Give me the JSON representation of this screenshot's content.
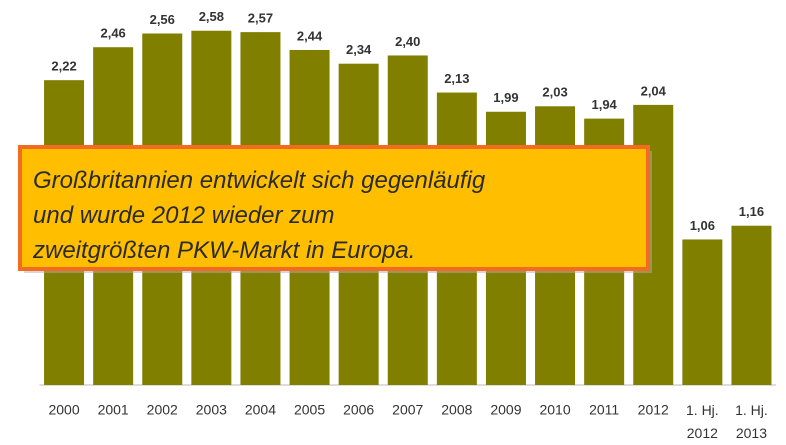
{
  "chart_data": {
    "type": "bar",
    "categories": [
      "2000",
      "2001",
      "2002",
      "2003",
      "2004",
      "2005",
      "2006",
      "2007",
      "2008",
      "2009",
      "2010",
      "2011",
      "2012",
      "1. Hj. 2012",
      "1. Hj. 2013"
    ],
    "values": [
      2.22,
      2.46,
      2.56,
      2.58,
      2.57,
      2.44,
      2.34,
      2.4,
      2.13,
      1.99,
      2.03,
      1.94,
      2.04,
      1.06,
      1.16
    ],
    "value_labels": [
      "2,22",
      "2,46",
      "2,56",
      "2,58",
      "2,57",
      "2,44",
      "2,34",
      "2,40",
      "2,13",
      "1,99",
      "2,03",
      "1,94",
      "2,04",
      "1,06",
      "1,16"
    ],
    "color": "#807f00",
    "ylim": [
      0,
      2.6
    ],
    "annotation": [
      "Großbritannien entwickelt sich gegenläufig",
      "und wurde 2012 wieder zum",
      "zweitgrößten PKW-Markt in Europa."
    ]
  }
}
